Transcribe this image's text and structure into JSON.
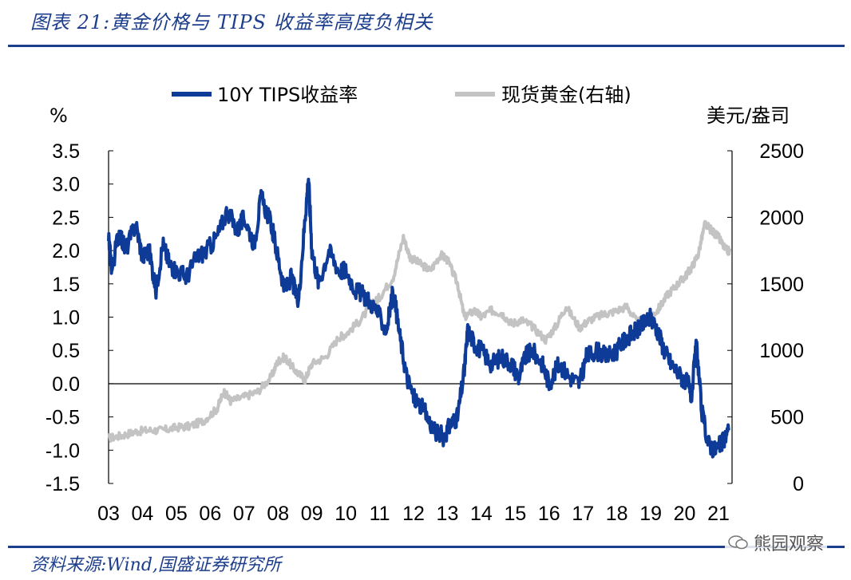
{
  "header": {
    "title": "图表 21:黄金价格与 TIPS 收益率高度负相关"
  },
  "footer": {
    "source": "资料来源:Wind,国盛证券研究所",
    "watermark": "熊园观察"
  },
  "chart_data": {
    "type": "line",
    "title": "",
    "left_unit": "%",
    "right_unit": "美元/盎司",
    "x_tick_labels": [
      "03",
      "04",
      "05",
      "06",
      "07",
      "08",
      "09",
      "10",
      "11",
      "12",
      "13",
      "14",
      "15",
      "16",
      "17",
      "18",
      "19",
      "20",
      "21"
    ],
    "ylim_left": [
      -1.5,
      3.5
    ],
    "ylim_right": [
      0,
      2500
    ],
    "y_left_ticks": [
      "3.5",
      "3.0",
      "2.5",
      "2.0",
      "1.5",
      "1.0",
      "0.5",
      "0.0",
      "-0.5",
      "-1.0",
      "-1.5"
    ],
    "y_right_ticks": [
      "2500",
      "2000",
      "1500",
      "1000",
      "500",
      "0"
    ],
    "x_start_year": 2003.0,
    "x_end_year": 2021.4,
    "colors": {
      "tips": "#0e3b97",
      "gold": "#c3c3c3",
      "accent": "#1c3e8c"
    },
    "legend": [
      {
        "name": "10Y TIPS收益率",
        "color": "#0e3b97"
      },
      {
        "name": "现货黄金(右轴)",
        "color": "#c3c3c3"
      }
    ],
    "series": [
      {
        "name": "10Y TIPS收益率",
        "axis": "left",
        "color": "#0e3b97",
        "x": [
          2003.0,
          2003.1,
          2003.3,
          2003.5,
          2003.8,
          2004.0,
          2004.2,
          2004.4,
          2004.6,
          2004.8,
          2005.0,
          2005.3,
          2005.6,
          2005.9,
          2006.2,
          2006.5,
          2006.8,
          2007.0,
          2007.3,
          2007.5,
          2007.8,
          2008.0,
          2008.2,
          2008.4,
          2008.6,
          2008.8,
          2008.9,
          2009.0,
          2009.2,
          2009.5,
          2009.8,
          2010.0,
          2010.3,
          2010.6,
          2010.9,
          2011.2,
          2011.4,
          2011.6,
          2011.8,
          2012.0,
          2012.3,
          2012.6,
          2012.9,
          2013.1,
          2013.3,
          2013.5,
          2013.6,
          2013.8,
          2014.0,
          2014.3,
          2014.6,
          2014.9,
          2015.1,
          2015.3,
          2015.5,
          2015.8,
          2016.0,
          2016.3,
          2016.6,
          2016.9,
          2017.1,
          2017.4,
          2017.7,
          2018.0,
          2018.3,
          2018.6,
          2018.8,
          2019.0,
          2019.2,
          2019.4,
          2019.6,
          2019.9,
          2020.1,
          2020.2,
          2020.35,
          2020.5,
          2020.7,
          2020.9,
          2021.1,
          2021.3
        ],
        "values": [
          2.2,
          1.7,
          2.3,
          2.0,
          2.4,
          1.9,
          2.0,
          1.4,
          2.1,
          1.8,
          1.7,
          1.6,
          1.9,
          2.0,
          2.2,
          2.6,
          2.3,
          2.5,
          2.1,
          2.8,
          2.4,
          1.9,
          1.4,
          1.6,
          1.2,
          2.5,
          3.1,
          2.0,
          1.5,
          2.0,
          1.7,
          1.7,
          1.4,
          1.3,
          1.1,
          0.8,
          1.4,
          0.7,
          0.1,
          -0.2,
          -0.4,
          -0.7,
          -0.8,
          -0.6,
          -0.5,
          0.2,
          0.8,
          0.6,
          0.5,
          0.3,
          0.4,
          0.3,
          0.1,
          0.4,
          0.5,
          0.3,
          0.0,
          0.3,
          0.1,
          0.0,
          0.4,
          0.5,
          0.4,
          0.5,
          0.7,
          0.8,
          0.9,
          1.0,
          0.8,
          0.5,
          0.3,
          0.1,
          0.0,
          -0.2,
          0.6,
          -0.4,
          -0.9,
          -1.0,
          -0.9,
          -0.7
        ]
      },
      {
        "name": "现货黄金(右轴)",
        "axis": "right",
        "color": "#c3c3c3",
        "x": [
          2003.0,
          2003.4,
          2003.8,
          2004.2,
          2004.6,
          2005.0,
          2005.4,
          2005.8,
          2006.2,
          2006.4,
          2006.6,
          2007.0,
          2007.4,
          2007.8,
          2008.0,
          2008.2,
          2008.5,
          2008.8,
          2009.0,
          2009.4,
          2009.8,
          2010.0,
          2010.4,
          2010.8,
          2011.0,
          2011.4,
          2011.7,
          2011.9,
          2012.2,
          2012.5,
          2012.8,
          2013.0,
          2013.3,
          2013.5,
          2013.8,
          2014.0,
          2014.3,
          2014.6,
          2014.9,
          2015.2,
          2015.5,
          2015.9,
          2016.2,
          2016.5,
          2016.9,
          2017.2,
          2017.6,
          2017.9,
          2018.3,
          2018.6,
          2018.9,
          2019.2,
          2019.5,
          2019.8,
          2020.0,
          2020.2,
          2020.4,
          2020.6,
          2020.8,
          2021.0,
          2021.2,
          2021.35
        ],
        "values": [
          340,
          360,
          390,
          400,
          400,
          420,
          430,
          470,
          560,
          690,
          620,
          650,
          690,
          800,
          920,
          950,
          850,
          780,
          900,
          950,
          1100,
          1120,
          1220,
          1350,
          1400,
          1550,
          1850,
          1700,
          1650,
          1600,
          1720,
          1680,
          1500,
          1250,
          1300,
          1250,
          1300,
          1280,
          1200,
          1230,
          1180,
          1080,
          1180,
          1330,
          1170,
          1230,
          1270,
          1290,
          1330,
          1210,
          1240,
          1300,
          1420,
          1500,
          1550,
          1620,
          1720,
          1950,
          1900,
          1850,
          1760,
          1740
        ]
      }
    ]
  }
}
